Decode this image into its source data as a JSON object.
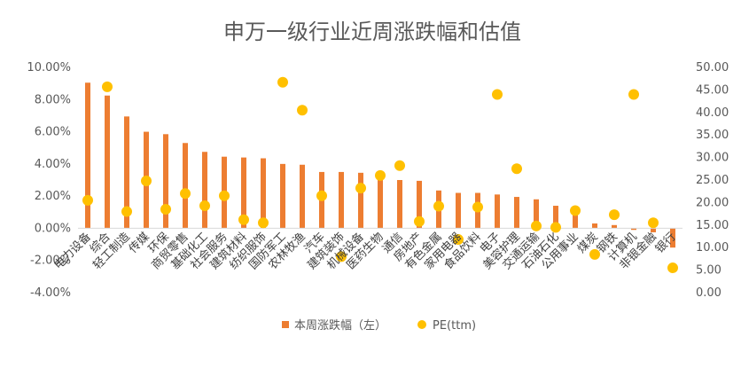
{
  "chart_data": {
    "type": "bar",
    "title": "申万一级行业近周涨跌幅和估值",
    "categories": [
      "电力设备",
      "综合",
      "轻工制造",
      "传媒",
      "环保",
      "商贸零售",
      "基础化工",
      "社会服务",
      "建筑材料",
      "纺织服饰",
      "国防军工",
      "农林牧渔",
      "汽车",
      "建筑装饰",
      "机械设备",
      "医药生物",
      "通信",
      "房地产",
      "有色金属",
      "家用电器",
      "食品饮料",
      "电子",
      "美容护理",
      "交通运输",
      "石油石化",
      "公用事业",
      "煤炭",
      "钢铁",
      "计算机",
      "非银金融",
      "银行"
    ],
    "series": [
      {
        "name": "本周涨跌幅（左）",
        "type": "bar",
        "axis": "left",
        "color": "#ED7D31",
        "values": [
          9.05,
          8.25,
          6.95,
          6.0,
          5.85,
          5.3,
          4.75,
          4.45,
          4.4,
          4.35,
          4.0,
          3.95,
          3.5,
          3.5,
          3.45,
          3.2,
          3.0,
          2.95,
          2.35,
          2.2,
          2.2,
          2.1,
          1.95,
          1.8,
          1.4,
          0.9,
          0.3,
          0.2,
          -0.1,
          -0.25,
          -1.2
        ]
      },
      {
        "name": "PE(ttm)",
        "type": "scatter",
        "axis": "right",
        "color": "#FFC000",
        "values": [
          20.5,
          45.7,
          18.0,
          24.8,
          18.5,
          22.0,
          19.3,
          21.5,
          16.2,
          15.5,
          46.7,
          40.5,
          21.5,
          8.0,
          23.2,
          26.0,
          28.2,
          15.8,
          19.2,
          11.8,
          19.0,
          44.0,
          27.5,
          14.8,
          14.5,
          18.2,
          8.5,
          17.3,
          44.0,
          15.5,
          5.5
        ]
      }
    ],
    "y_left": {
      "min": -0.04,
      "max": 0.1,
      "step": 0.02,
      "tick_labels": [
        "-4.00%",
        "-2.00%",
        "0.00%",
        "2.00%",
        "4.00%",
        "6.00%",
        "8.00%",
        "10.00%"
      ]
    },
    "y_right": {
      "min": 0,
      "max": 50,
      "step": 5,
      "tick_labels": [
        "0.00",
        "5.00",
        "10.00",
        "15.00",
        "20.00",
        "25.00",
        "30.00",
        "35.00",
        "40.00",
        "45.00",
        "50.00"
      ]
    },
    "legend": {
      "position": "bottom",
      "items": [
        "本周涨跌幅（左）",
        "PE(ttm)"
      ]
    },
    "grid": false
  }
}
